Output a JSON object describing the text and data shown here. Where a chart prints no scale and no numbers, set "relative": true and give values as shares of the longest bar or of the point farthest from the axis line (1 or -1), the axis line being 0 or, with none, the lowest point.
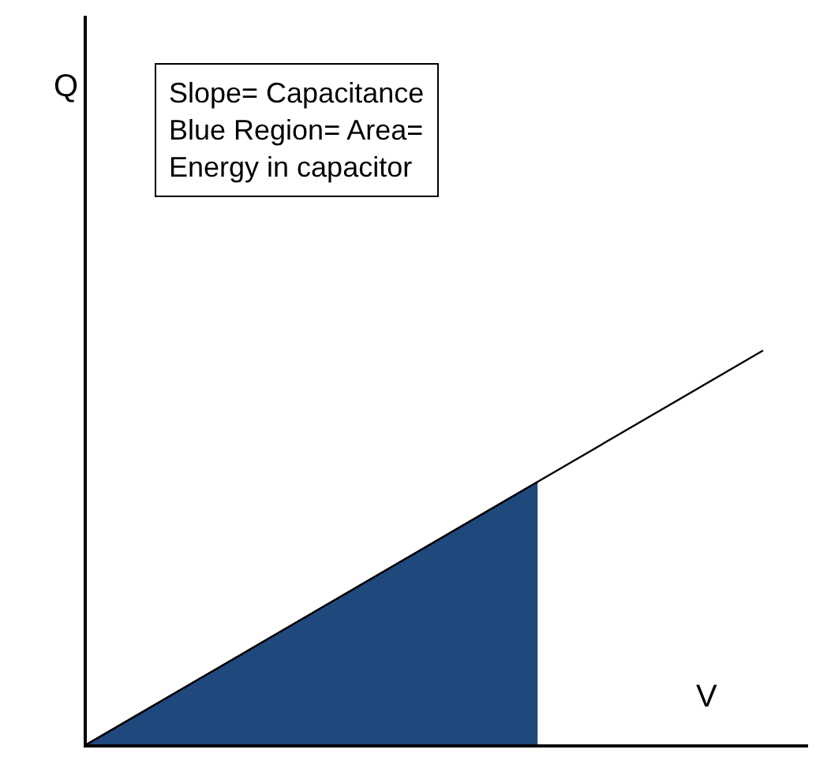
{
  "chart_data": {
    "type": "line",
    "relative": true,
    "xlabel": "V",
    "categories": [
      null,
      null,
      null,
      null,
      null,
      null,
      null
    ],
    "series": [
      {
        "color": "#000000",
        "values": [
          0,
          0.1667,
          0.3333,
          0.5,
          0.6667,
          0.8333,
          1
        ]
      },
      {
        "type": "area",
        "color": "#1f497d",
        "values": [
          0,
          0.1667,
          0.3333,
          0.5,
          0.6667,
          null,
          null
        ]
      }
    ],
    "annotations": [
      "Q",
      "Slope= Capacitance\nBlue Region= Area=\nEnergy in capacitor"
    ]
  }
}
